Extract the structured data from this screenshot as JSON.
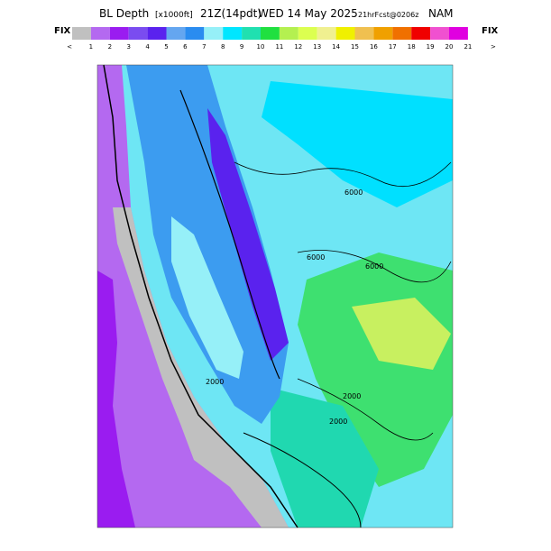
{
  "header": {
    "title_parts": [
      "BL Depth",
      "[x1000ft]",
      "21Z(14pdt)",
      "WED 14 May 2025",
      "21hrFcst@0206z",
      "NAM"
    ]
  },
  "colorbar": {
    "left_label": "FIX",
    "right_label": "FIX",
    "colors": [
      "#c0c0c0",
      "#b469f0",
      "#9a1cf0",
      "#7a4cf0",
      "#5a22ee",
      "#64a6f0",
      "#2a8cf0",
      "#96f0f8",
      "#00e6ff",
      "#20e0b0",
      "#20e040",
      "#b4f050",
      "#dcff50",
      "#f0f090",
      "#f0f000",
      "#f0c050",
      "#f0a000",
      "#f07000",
      "#f00000",
      "#f050d0",
      "#e000e0"
    ],
    "tick_labels": [
      "<",
      "1",
      "2",
      "3",
      "4",
      "5",
      "6",
      "7",
      "8",
      "9",
      "10",
      "11",
      "12",
      "13",
      "14",
      "15",
      "16",
      "17",
      "18",
      "19",
      "20",
      "21",
      ">"
    ]
  },
  "map": {
    "contour_labels": [
      "6000",
      "6000",
      "6000",
      "2000",
      "2000",
      "2000"
    ]
  }
}
